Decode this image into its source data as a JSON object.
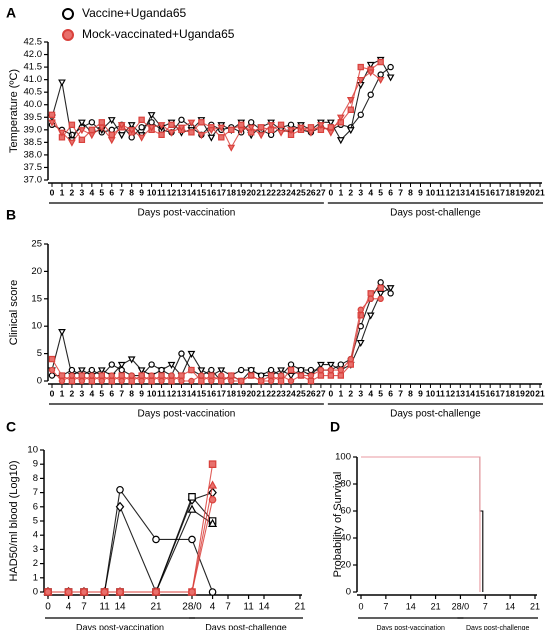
{
  "legend": [
    {
      "name": "Vaccine+Uganda65",
      "color": "#000000",
      "fill": "#ffffff"
    },
    {
      "name": "Mock-vaccinated+Uganda65",
      "color": "#d9413c",
      "fill": "#e8706c"
    }
  ],
  "chart_data": [
    {
      "type": "line",
      "letter": "A",
      "y_label": "Temperature (ºC)",
      "categories": [
        "0",
        "1",
        "2",
        "3",
        "4",
        "5",
        "6",
        "7",
        "8",
        "9",
        "10",
        "11",
        "12",
        "13",
        "14",
        "15",
        "16",
        "17",
        "18",
        "19",
        "20",
        "21",
        "22",
        "23",
        "24",
        "25",
        "26",
        "27",
        "0",
        "1",
        "2",
        "3",
        "4",
        "5",
        "6",
        "7",
        "8",
        "9",
        "10",
        "11",
        "12",
        "13",
        "14",
        "15",
        "16",
        "17",
        "18",
        "19",
        "20",
        "21"
      ],
      "x_groups": [
        {
          "label": "Days post-vaccination",
          "span": [
            0,
            27
          ]
        },
        {
          "label": "Days post-challenge",
          "span": [
            28,
            49
          ]
        }
      ],
      "ylim": [
        37.0,
        42.5
      ],
      "yticks": [
        {
          "value": 37.0,
          "label": "37.0"
        },
        {
          "value": 37.5,
          "label": "37.5"
        },
        {
          "value": 38.0,
          "label": "38.0"
        },
        {
          "value": 38.5,
          "label": "38.5"
        },
        {
          "value": 39.0,
          "label": "39.0"
        },
        {
          "value": 39.5,
          "label": "39.5"
        },
        {
          "value": 40.0,
          "label": "40.0"
        },
        {
          "value": 40.5,
          "label": "40.5"
        },
        {
          "value": 41.0,
          "label": "41.0"
        },
        {
          "value": 41.5,
          "label": "41.5"
        },
        {
          "value": 42.0,
          "label": "42.0"
        },
        {
          "value": 42.5,
          "label": "42.5"
        }
      ],
      "series": [
        {
          "color": "#000000",
          "fill": "#ffffff",
          "marker": "circle",
          "values": [
            39.2,
            39.0,
            38.8,
            39.1,
            39.3,
            38.9,
            39.0,
            39.2,
            38.7,
            39.1,
            39.3,
            39.0,
            38.9,
            39.4,
            39.1,
            38.8,
            39.2,
            39.0,
            39.1,
            38.9,
            39.3,
            39.0,
            38.8,
            39.1,
            39.2,
            39.0,
            38.9,
            39.1,
            39.0,
            39.2,
            39.1,
            39.6,
            40.4,
            41.2,
            41.5,
            null,
            null,
            null,
            null,
            null,
            null,
            null,
            null,
            null,
            null,
            null,
            null,
            null,
            null,
            null
          ]
        },
        {
          "color": "#000000",
          "fill": "#ffffff",
          "marker": "triangle-down",
          "values": [
            39.5,
            40.9,
            38.6,
            39.3,
            38.9,
            39.0,
            39.4,
            38.8,
            39.2,
            38.8,
            39.6,
            39.1,
            39.3,
            38.9,
            39.0,
            39.4,
            38.7,
            39.2,
            39.0,
            39.3,
            38.8,
            39.1,
            39.3,
            39.0,
            38.9,
            39.2,
            39.0,
            39.3,
            39.3,
            38.6,
            39.0,
            40.8,
            41.6,
            41.8,
            41.1,
            null,
            null,
            null,
            null,
            null,
            null,
            null,
            null,
            null,
            null,
            null,
            null,
            null,
            null,
            null
          ]
        },
        {
          "color": "#d9413c",
          "fill": "#e8706c",
          "marker": "square",
          "values": [
            39.6,
            38.7,
            39.2,
            38.6,
            39.0,
            39.3,
            38.8,
            39.1,
            38.9,
            39.4,
            39.0,
            38.8,
            39.2,
            39.0,
            38.9,
            39.3,
            39.1,
            38.7,
            39.0,
            39.2,
            38.9,
            39.1,
            39.0,
            39.2,
            38.8,
            39.0,
            39.1,
            39.0,
            39.1,
            39.3,
            39.8,
            41.5,
            41.4,
            41.7,
            null,
            null,
            null,
            null,
            null,
            null,
            null,
            null,
            null,
            null,
            null,
            null,
            null,
            null,
            null,
            null
          ]
        },
        {
          "color": "#d9413c",
          "fill": "#e8706c",
          "marker": "triangle-down",
          "values": [
            39.3,
            38.9,
            38.5,
            39.0,
            38.8,
            39.1,
            38.6,
            39.2,
            39.0,
            38.7,
            39.1,
            39.2,
            38.9,
            39.1,
            39.3,
            38.8,
            39.0,
            39.1,
            38.3,
            39.0,
            39.1,
            38.8,
            39.2,
            38.9,
            39.0,
            39.1,
            38.9,
            39.2,
            38.9,
            39.5,
            40.2,
            41.0,
            41.3,
            41.0,
            null,
            null,
            null,
            null,
            null,
            null,
            null,
            null,
            null,
            null,
            null,
            null,
            null,
            null,
            null,
            null
          ]
        }
      ]
    },
    {
      "type": "line",
      "letter": "B",
      "y_label": "Clinical score",
      "categories": [
        "0",
        "1",
        "2",
        "3",
        "4",
        "5",
        "6",
        "7",
        "8",
        "9",
        "10",
        "11",
        "12",
        "13",
        "14",
        "15",
        "16",
        "17",
        "18",
        "19",
        "20",
        "21",
        "22",
        "23",
        "24",
        "25",
        "26",
        "27",
        "0",
        "1",
        "2",
        "3",
        "4",
        "5",
        "6",
        "7",
        "8",
        "9",
        "10",
        "11",
        "12",
        "13",
        "14",
        "15",
        "16",
        "17",
        "18",
        "19",
        "20",
        "21"
      ],
      "x_groups": [
        {
          "label": "Days post-vaccination",
          "span": [
            0,
            27
          ]
        },
        {
          "label": "Days post-challenge",
          "span": [
            28,
            49
          ]
        }
      ],
      "ylim": [
        0,
        25
      ],
      "yticks": [
        0,
        5,
        10,
        15,
        20,
        25
      ],
      "series": [
        {
          "color": "#000000",
          "fill": "#ffffff",
          "marker": "triangle-down",
          "values": [
            2,
            9,
            1,
            2,
            1,
            2,
            1,
            3,
            4,
            2,
            1,
            2,
            3,
            1,
            5,
            2,
            1,
            2,
            1,
            0,
            2,
            1,
            1,
            2,
            1,
            2,
            1,
            3,
            3,
            2,
            3,
            7,
            12,
            16,
            17,
            null,
            null,
            null,
            null,
            null,
            null,
            null,
            null,
            null,
            null,
            null,
            null,
            null,
            null,
            null
          ]
        },
        {
          "color": "#000000",
          "fill": "#ffffff",
          "marker": "circle",
          "values": [
            1,
            1,
            2,
            1,
            2,
            1,
            3,
            2,
            1,
            1,
            3,
            2,
            1,
            5,
            2,
            1,
            2,
            0,
            1,
            2,
            2,
            1,
            2,
            1,
            3,
            2,
            2,
            2,
            2,
            3,
            4,
            10,
            15,
            18,
            16,
            null,
            null,
            null,
            null,
            null,
            null,
            null,
            null,
            null,
            null,
            null,
            null,
            null,
            null,
            null
          ]
        },
        {
          "color": "#d9413c",
          "fill": "#e8706c",
          "marker": "square",
          "values": [
            4,
            1,
            0,
            1,
            0,
            1,
            0,
            1,
            0,
            1,
            0,
            1,
            0,
            1,
            2,
            0,
            1,
            0,
            1,
            0,
            1,
            0,
            1,
            0,
            2,
            1,
            0,
            1,
            1,
            1,
            3,
            12,
            16,
            17,
            null,
            null,
            null,
            null,
            null,
            null,
            null,
            null,
            null,
            null,
            null,
            null,
            null,
            null,
            null,
            null
          ]
        },
        {
          "color": "#d9413c",
          "fill": "#e8706c",
          "marker": "circle",
          "values": [
            2,
            0,
            1,
            0,
            1,
            0,
            1,
            0,
            1,
            0,
            1,
            0,
            1,
            0,
            0,
            1,
            0,
            1,
            0,
            0,
            1,
            0,
            0,
            1,
            0,
            1,
            1,
            2,
            2,
            2,
            4,
            13,
            15,
            15,
            null,
            null,
            null,
            null,
            null,
            null,
            null,
            null,
            null,
            null,
            null,
            null,
            null,
            null,
            null,
            null
          ]
        }
      ]
    },
    {
      "type": "line",
      "letter": "C",
      "y_label": "HAD50/ml blood (Log10)",
      "x": [
        0,
        4,
        7,
        11,
        14,
        21,
        28,
        32
      ],
      "xlim": [
        0,
        49
      ],
      "xticks": [
        0,
        4,
        7,
        11,
        14,
        21,
        {
          "value": 28,
          "label": "28/0"
        },
        {
          "value": 32,
          "label": "4"
        },
        {
          "value": 35,
          "label": "7"
        },
        {
          "value": 39,
          "label": "11"
        },
        {
          "value": 42,
          "label": "14"
        },
        {
          "value": 49,
          "label": "21"
        }
      ],
      "x_groups": [
        {
          "label": "Days post-vaccination",
          "span": [
            0,
            28
          ]
        },
        {
          "label": "Days post-challenge",
          "span": [
            28,
            49
          ]
        }
      ],
      "ylim": [
        0,
        10
      ],
      "yticks": [
        0,
        1,
        2,
        3,
        4,
        5,
        6,
        7,
        8,
        9,
        10
      ],
      "series": [
        {
          "color": "#000000",
          "fill": "#ffffff",
          "marker": "circle",
          "values": [
            0,
            0,
            0,
            0,
            7.2,
            3.7,
            3.7,
            0
          ]
        },
        {
          "color": "#000000",
          "fill": "#ffffff",
          "marker": "diamond",
          "values": [
            0,
            0,
            0,
            0,
            6.0,
            0,
            6.5,
            7.0
          ]
        },
        {
          "color": "#000000",
          "fill": "#ffffff",
          "marker": "square",
          "values": [
            0,
            0,
            0,
            0,
            0,
            0,
            6.7,
            5.0
          ]
        },
        {
          "color": "#000000",
          "fill": "#ffffff",
          "marker": "triangle",
          "values": [
            0,
            0,
            0,
            0,
            0,
            0,
            5.8,
            4.8
          ]
        },
        {
          "color": "#d9413c",
          "fill": "#e8706c",
          "marker": "square",
          "values": [
            0,
            0,
            0,
            0,
            0,
            0,
            0,
            9.0
          ]
        },
        {
          "color": "#d9413c",
          "fill": "#e8706c",
          "marker": "triangle",
          "values": [
            0,
            0,
            0,
            0,
            0,
            0,
            0,
            7.5
          ]
        },
        {
          "color": "#d9413c",
          "fill": "#e8706c",
          "marker": "circle",
          "values": [
            0,
            0,
            0,
            0,
            0,
            0,
            0,
            6.5
          ]
        }
      ]
    },
    {
      "type": "step",
      "letter": "D",
      "y_label": "Probability of Survival",
      "xlim": [
        0,
        49
      ],
      "xticks": [
        0,
        7,
        14,
        21,
        {
          "value": 28,
          "label": "28/0"
        },
        {
          "value": 35,
          "label": "7"
        },
        {
          "value": 42,
          "label": "14"
        },
        {
          "value": 49,
          "label": "21"
        }
      ],
      "x_groups": [
        {
          "label": "Days post-vaccination",
          "span": [
            0,
            28
          ]
        },
        {
          "label": "Days post-challenge",
          "span": [
            28,
            49
          ]
        }
      ],
      "ylim": [
        0,
        100
      ],
      "yticks": [
        0,
        20,
        40,
        60,
        80,
        100
      ],
      "series": [
        {
          "color": "#000000",
          "x": [
            0,
            33.5,
            34.3
          ],
          "values": [
            100,
            60,
            0
          ]
        },
        {
          "color": "#e89aa0",
          "x": [
            0,
            33.5
          ],
          "values": [
            100,
            0
          ]
        }
      ]
    }
  ]
}
